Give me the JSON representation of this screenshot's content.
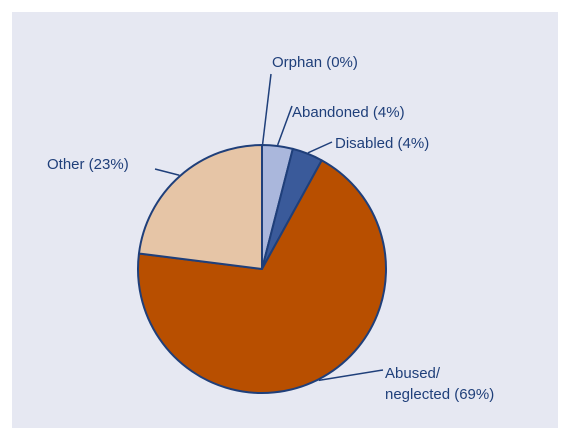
{
  "chart_data": {
    "type": "pie",
    "slices": [
      {
        "label": "Orphan (0%)",
        "name": "Orphan",
        "value": 0,
        "color": "#b3bfdc"
      },
      {
        "label": "Abandoned (4%)",
        "name": "Abandoned",
        "value": 4,
        "color": "#aab7dc"
      },
      {
        "label": "Disabled (4%)",
        "name": "Disabled",
        "value": 4,
        "color": "#3a5a9a"
      },
      {
        "label_lines": [
          "Abused/",
          "neglected (69%)"
        ],
        "name": "Abused/neglected",
        "value": 69,
        "color": "#b84f00"
      },
      {
        "label": "Other (23%)",
        "name": "Other",
        "value": 23,
        "color": "#e6c5a6"
      }
    ],
    "start": "12 o'clock",
    "direction": "clockwise",
    "outline_color": "#1f3f7a",
    "background_color": "#e6e8f2"
  }
}
